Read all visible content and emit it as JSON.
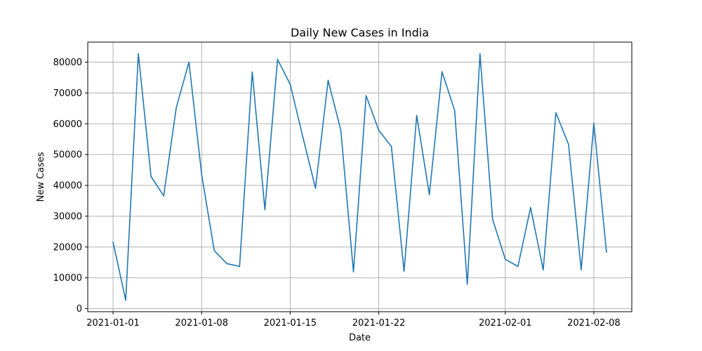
{
  "chart_data": {
    "type": "line",
    "title": "Daily New Cases in India",
    "xlabel": "Date",
    "ylabel": "New Cases",
    "grid": true,
    "x_ticks": [
      "2021-01-01",
      "2021-01-08",
      "2021-01-15",
      "2021-01-22",
      "2021-02-01",
      "2021-02-08"
    ],
    "y_ticks": [
      0,
      10000,
      20000,
      30000,
      40000,
      50000,
      60000,
      70000,
      80000
    ],
    "xlim": [
      "2020-12-30",
      "2021-02-11"
    ],
    "ylim": [
      -1000,
      86500
    ],
    "series": [
      {
        "name": "",
        "color": "#1f77b4",
        "x": [
          "2021-01-01",
          "2021-01-02",
          "2021-01-03",
          "2021-01-04",
          "2021-01-05",
          "2021-01-06",
          "2021-01-07",
          "2021-01-08",
          "2021-01-09",
          "2021-01-10",
          "2021-01-11",
          "2021-01-12",
          "2021-01-13",
          "2021-01-14",
          "2021-01-15",
          "2021-01-16",
          "2021-01-17",
          "2021-01-18",
          "2021-01-19",
          "2021-01-20",
          "2021-01-21",
          "2021-01-22",
          "2021-01-23",
          "2021-01-24",
          "2021-01-25",
          "2021-01-26",
          "2021-01-27",
          "2021-01-28",
          "2021-01-29",
          "2021-01-30",
          "2021-01-31",
          "2021-02-01",
          "2021-02-02",
          "2021-02-03",
          "2021-02-04",
          "2021-02-05",
          "2021-02-06",
          "2021-02-07",
          "2021-02-08",
          "2021-02-09"
        ],
        "y": [
          21600,
          2700,
          82700,
          42900,
          36600,
          65300,
          80000,
          43600,
          18800,
          14600,
          13700,
          76800,
          32100,
          80900,
          72800,
          55700,
          39100,
          74100,
          57900,
          11900,
          69100,
          57900,
          52600,
          12100,
          62700,
          37000,
          76900,
          64300,
          7900,
          82700,
          29000,
          16000,
          13700,
          32800,
          12600,
          63600,
          53300,
          12600,
          60100,
          18300
        ]
      }
    ]
  }
}
